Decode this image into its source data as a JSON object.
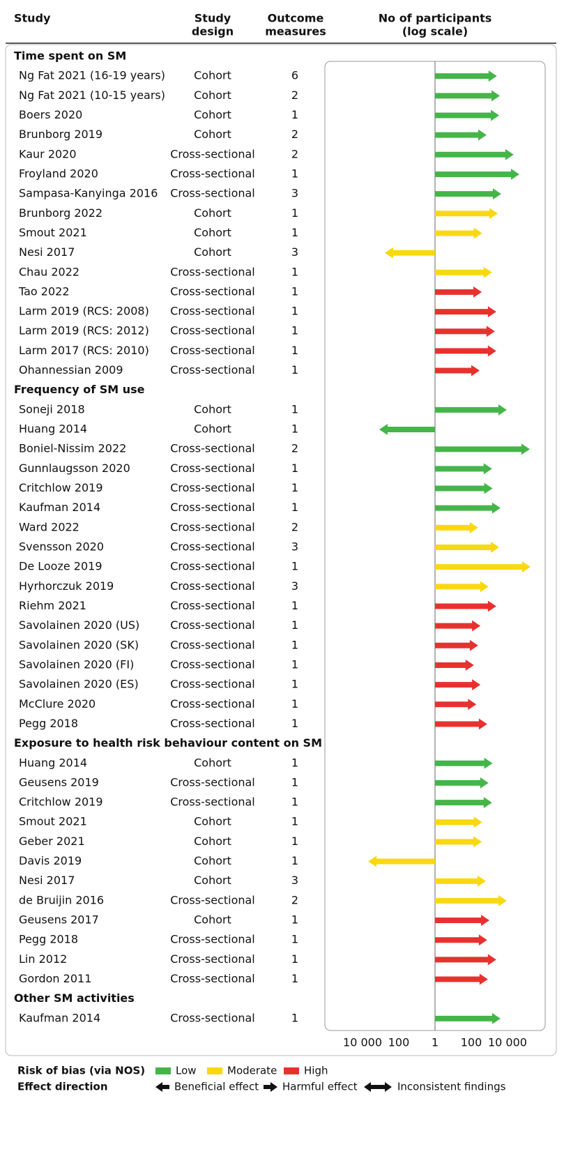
{
  "header": {
    "study": "Study",
    "design": [
      "Study",
      "design"
    ],
    "outcomes": [
      "Outcome",
      "measures"
    ],
    "participants": [
      "No of participants",
      "(log scale)"
    ]
  },
  "chart_data": {
    "type": "effect-direction",
    "log_scale": true,
    "xlim": [
      -1200000,
      1200000
    ],
    "xticks": [
      {
        "value": -10000,
        "label": "10 000"
      },
      {
        "value": -100,
        "label": "100"
      },
      1,
      100,
      {
        "value": 10000,
        "label": "10 000"
      }
    ],
    "groups": [
      {
        "name": "Time spent on SM",
        "rows": [
          {
            "study": "Ng Fat 2021 (16-19 years)",
            "design": "Cohort",
            "outcomes": 6,
            "participants": 2600,
            "direction": "harmful",
            "bias": "Low"
          },
          {
            "study": "Ng Fat 2021 (10-15 years)",
            "design": "Cohort",
            "outcomes": 2,
            "participants": 3800,
            "direction": "harmful",
            "bias": "Low"
          },
          {
            "study": "Boers 2020",
            "design": "Cohort",
            "outcomes": 1,
            "participants": 3500,
            "direction": "harmful",
            "bias": "Low"
          },
          {
            "study": "Brunborg 2019",
            "design": "Cohort",
            "outcomes": 2,
            "participants": 700,
            "direction": "harmful",
            "bias": "Low"
          },
          {
            "study": "Kaur 2020",
            "design": "Cross-sectional",
            "outcomes": 2,
            "participants": 22000,
            "direction": "harmful",
            "bias": "Low"
          },
          {
            "study": "Froyland 2020",
            "design": "Cross-sectional",
            "outcomes": 1,
            "participants": 45000,
            "direction": "harmful",
            "bias": "Low"
          },
          {
            "study": "Sampasa-Kanyinga 2016",
            "design": "Cross-sectional",
            "outcomes": 3,
            "participants": 4500,
            "direction": "harmful",
            "bias": "Low"
          },
          {
            "study": "Brunborg 2022",
            "design": "Cohort",
            "outcomes": 1,
            "participants": 2900,
            "direction": "harmful",
            "bias": "Moderate"
          },
          {
            "study": "Smout 2021",
            "design": "Cohort",
            "outcomes": 1,
            "participants": 400,
            "direction": "harmful",
            "bias": "Moderate"
          },
          {
            "study": "Nesi 2017",
            "design": "Cohort",
            "outcomes": 3,
            "participants": 590,
            "direction": "beneficial",
            "bias": "Moderate"
          },
          {
            "study": "Chau 2022",
            "design": "Cross-sectional",
            "outcomes": 1,
            "participants": 1400,
            "direction": "harmful",
            "bias": "Moderate"
          },
          {
            "study": "Tao 2022",
            "design": "Cross-sectional",
            "outcomes": 1,
            "participants": 380,
            "direction": "harmful",
            "bias": "High"
          },
          {
            "study": "Larm 2019 (RCS: 2008)",
            "design": "Cross-sectional",
            "outcomes": 1,
            "participants": 2400,
            "direction": "harmful",
            "bias": "High"
          },
          {
            "study": "Larm 2019 (RCS: 2012)",
            "design": "Cross-sectional",
            "outcomes": 1,
            "participants": 2000,
            "direction": "harmful",
            "bias": "High"
          },
          {
            "study": "Larm 2017 (RCS: 2010)",
            "design": "Cross-sectional",
            "outcomes": 1,
            "participants": 2400,
            "direction": "harmful",
            "bias": "High"
          },
          {
            "study": "Ohannessian 2009",
            "design": "Cross-sectional",
            "outcomes": 1,
            "participants": 290,
            "direction": "harmful",
            "bias": "High"
          }
        ]
      },
      {
        "name": "Frequency of SM use",
        "rows": [
          {
            "study": "Soneji 2018",
            "design": "Cohort",
            "outcomes": 1,
            "participants": 9100,
            "direction": "harmful",
            "bias": "Low"
          },
          {
            "study": "Huang 2014",
            "design": "Cohort",
            "outcomes": 1,
            "participants": 1200,
            "direction": "beneficial",
            "bias": "Low"
          },
          {
            "study": "Boniel-Nissim 2022",
            "design": "Cross-sectional",
            "outcomes": 2,
            "participants": 170000,
            "direction": "harmful",
            "bias": "Low"
          },
          {
            "study": "Gunnlaugsson 2020",
            "design": "Cross-sectional",
            "outcomes": 1,
            "participants": 1400,
            "direction": "harmful",
            "bias": "Low"
          },
          {
            "study": "Critchlow 2019",
            "design": "Cross-sectional",
            "outcomes": 1,
            "participants": 1500,
            "direction": "harmful",
            "bias": "Low"
          },
          {
            "study": "Kaufman 2014",
            "design": "Cross-sectional",
            "outcomes": 1,
            "participants": 4100,
            "direction": "harmful",
            "bias": "Low"
          },
          {
            "study": "Ward 2022",
            "design": "Cross-sectional",
            "outcomes": 2,
            "participants": 240,
            "direction": "harmful",
            "bias": "Moderate"
          },
          {
            "study": "Svensson 2020",
            "design": "Cross-sectional",
            "outcomes": 3,
            "participants": 3500,
            "direction": "harmful",
            "bias": "Moderate"
          },
          {
            "study": "De Looze 2019",
            "design": "Cross-sectional",
            "outcomes": 1,
            "participants": 186000,
            "direction": "harmful",
            "bias": "Moderate"
          },
          {
            "study": "Hyrhorczuk 2019",
            "design": "Cross-sectional",
            "outcomes": 3,
            "participants": 900,
            "direction": "harmful",
            "bias": "Moderate"
          },
          {
            "study": "Riehm 2021",
            "design": "Cross-sectional",
            "outcomes": 1,
            "participants": 2400,
            "direction": "harmful",
            "bias": "High"
          },
          {
            "study": "Savolainen 2020 (US)",
            "design": "Cross-sectional",
            "outcomes": 1,
            "participants": 320,
            "direction": "harmful",
            "bias": "High"
          },
          {
            "study": "Savolainen 2020 (SK)",
            "design": "Cross-sectional",
            "outcomes": 1,
            "participants": 240,
            "direction": "harmful",
            "bias": "High"
          },
          {
            "study": "Savolainen 2020 (FI)",
            "design": "Cross-sectional",
            "outcomes": 1,
            "participants": 140,
            "direction": "harmful",
            "bias": "High"
          },
          {
            "study": "Savolainen 2020 (ES)",
            "design": "Cross-sectional",
            "outcomes": 1,
            "participants": 320,
            "direction": "harmful",
            "bias": "High"
          },
          {
            "study": "McClure 2020",
            "design": "Cross-sectional",
            "outcomes": 1,
            "participants": 190,
            "direction": "harmful",
            "bias": "High"
          },
          {
            "study": "Pegg 2018",
            "design": "Cross-sectional",
            "outcomes": 1,
            "participants": 760,
            "direction": "harmful",
            "bias": "High"
          }
        ]
      },
      {
        "name": "Exposure to health risk behaviour content on SM",
        "rows": [
          {
            "study": "Huang 2014",
            "design": "Cohort",
            "outcomes": 1,
            "participants": 1500,
            "direction": "harmful",
            "bias": "Low"
          },
          {
            "study": "Geusens 2019",
            "design": "Cross-sectional",
            "outcomes": 1,
            "participants": 900,
            "direction": "harmful",
            "bias": "Low"
          },
          {
            "study": "Critchlow 2019",
            "design": "Cross-sectional",
            "outcomes": 1,
            "participants": 1400,
            "direction": "harmful",
            "bias": "Low"
          },
          {
            "study": "Smout 2021",
            "design": "Cohort",
            "outcomes": 1,
            "participants": 400,
            "direction": "harmful",
            "bias": "Moderate"
          },
          {
            "study": "Geber 2021",
            "design": "Cohort",
            "outcomes": 1,
            "participants": 380,
            "direction": "harmful",
            "bias": "Moderate"
          },
          {
            "study": "Davis 2019",
            "design": "Cohort",
            "outcomes": 1,
            "participants": 4900,
            "direction": "beneficial",
            "bias": "Moderate"
          },
          {
            "study": "Nesi 2017",
            "design": "Cohort",
            "outcomes": 3,
            "participants": 640,
            "direction": "harmful",
            "bias": "Moderate"
          },
          {
            "study": "de Bruijin 2016",
            "design": "Cross-sectional",
            "outcomes": 2,
            "participants": 9100,
            "direction": "harmful",
            "bias": "Moderate"
          },
          {
            "study": "Geusens 2017",
            "design": "Cohort",
            "outcomes": 1,
            "participants": 1000,
            "direction": "harmful",
            "bias": "High"
          },
          {
            "study": "Pegg 2018",
            "design": "Cross-sectional",
            "outcomes": 1,
            "participants": 760,
            "direction": "harmful",
            "bias": "High"
          },
          {
            "study": "Lin 2012",
            "design": "Cross-sectional",
            "outcomes": 1,
            "participants": 2400,
            "direction": "harmful",
            "bias": "High"
          },
          {
            "study": "Gordon 2011",
            "design": "Cross-sectional",
            "outcomes": 1,
            "participants": 830,
            "direction": "harmful",
            "bias": "High"
          }
        ]
      },
      {
        "name": "Other SM activities",
        "rows": [
          {
            "study": "Kaufman 2014",
            "design": "Cross-sectional",
            "outcomes": 1,
            "participants": 4100,
            "direction": "harmful",
            "bias": "Low"
          }
        ]
      }
    ]
  },
  "legend": {
    "bias_title": "Risk of bias (via NOS)",
    "bias": [
      {
        "label": "Low",
        "color": "#45b549"
      },
      {
        "label": "Moderate",
        "color": "#fad80f"
      },
      {
        "label": "High",
        "color": "#e8312f"
      }
    ],
    "direction_title": "Effect direction",
    "directions": [
      "Beneficial effect",
      "Harmful effect",
      "Inconsistent findings"
    ]
  }
}
